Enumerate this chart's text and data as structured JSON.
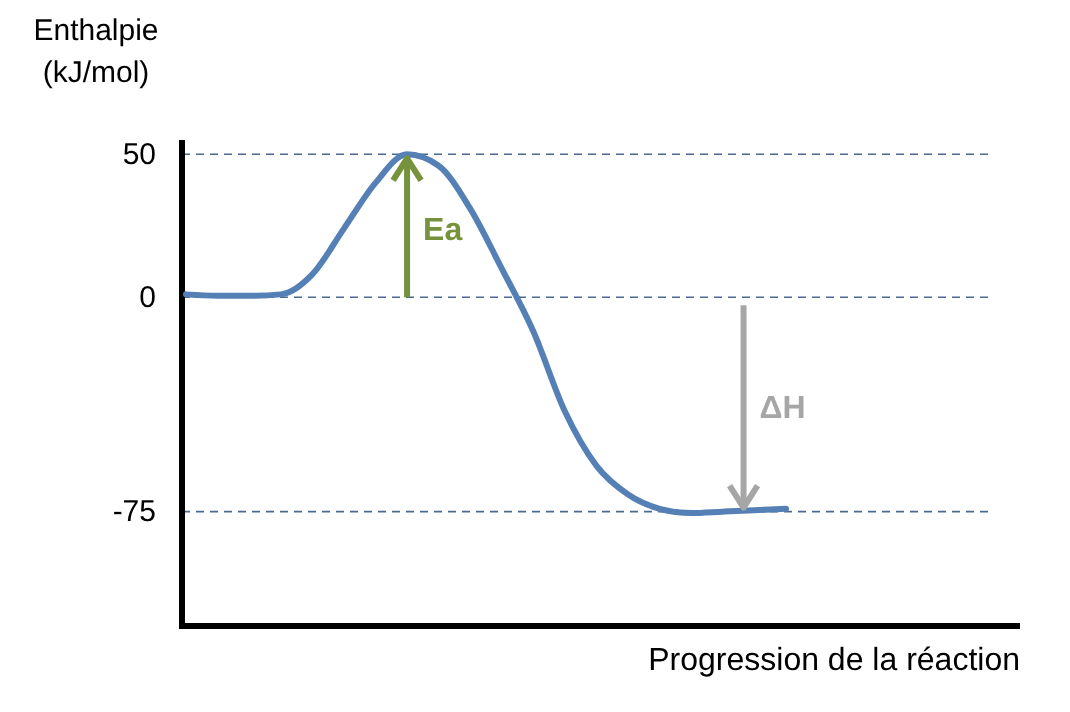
{
  "chart_data": {
    "type": "line",
    "xlabel": "Progression de la réaction",
    "ylabel": "Enthalpie (kJ/mol)",
    "categories": [
      null,
      null,
      null,
      null,
      null,
      null,
      null,
      null,
      null,
      null,
      null,
      null,
      null,
      null,
      null,
      null,
      null,
      null,
      null,
      null
    ],
    "series": [
      {
        "color": "#5580b5",
        "values": [
          1,
          0.5,
          0.5,
          1,
          8,
          24,
          40,
          50,
          46,
          31,
          10,
          -12,
          -40,
          -59,
          -69,
          -74,
          -75.5,
          -75,
          -74.5,
          -74
        ]
      }
    ],
    "ylim": [
      -115,
      55
    ],
    "yticks": [
      -75,
      0,
      50
    ],
    "grid": "y",
    "marker": "none",
    "line_style": "solid",
    "annotations": [
      {
        "text": "Ea",
        "y": 50
      },
      {
        "text": "ΔH",
        "y": -75
      }
    ]
  }
}
